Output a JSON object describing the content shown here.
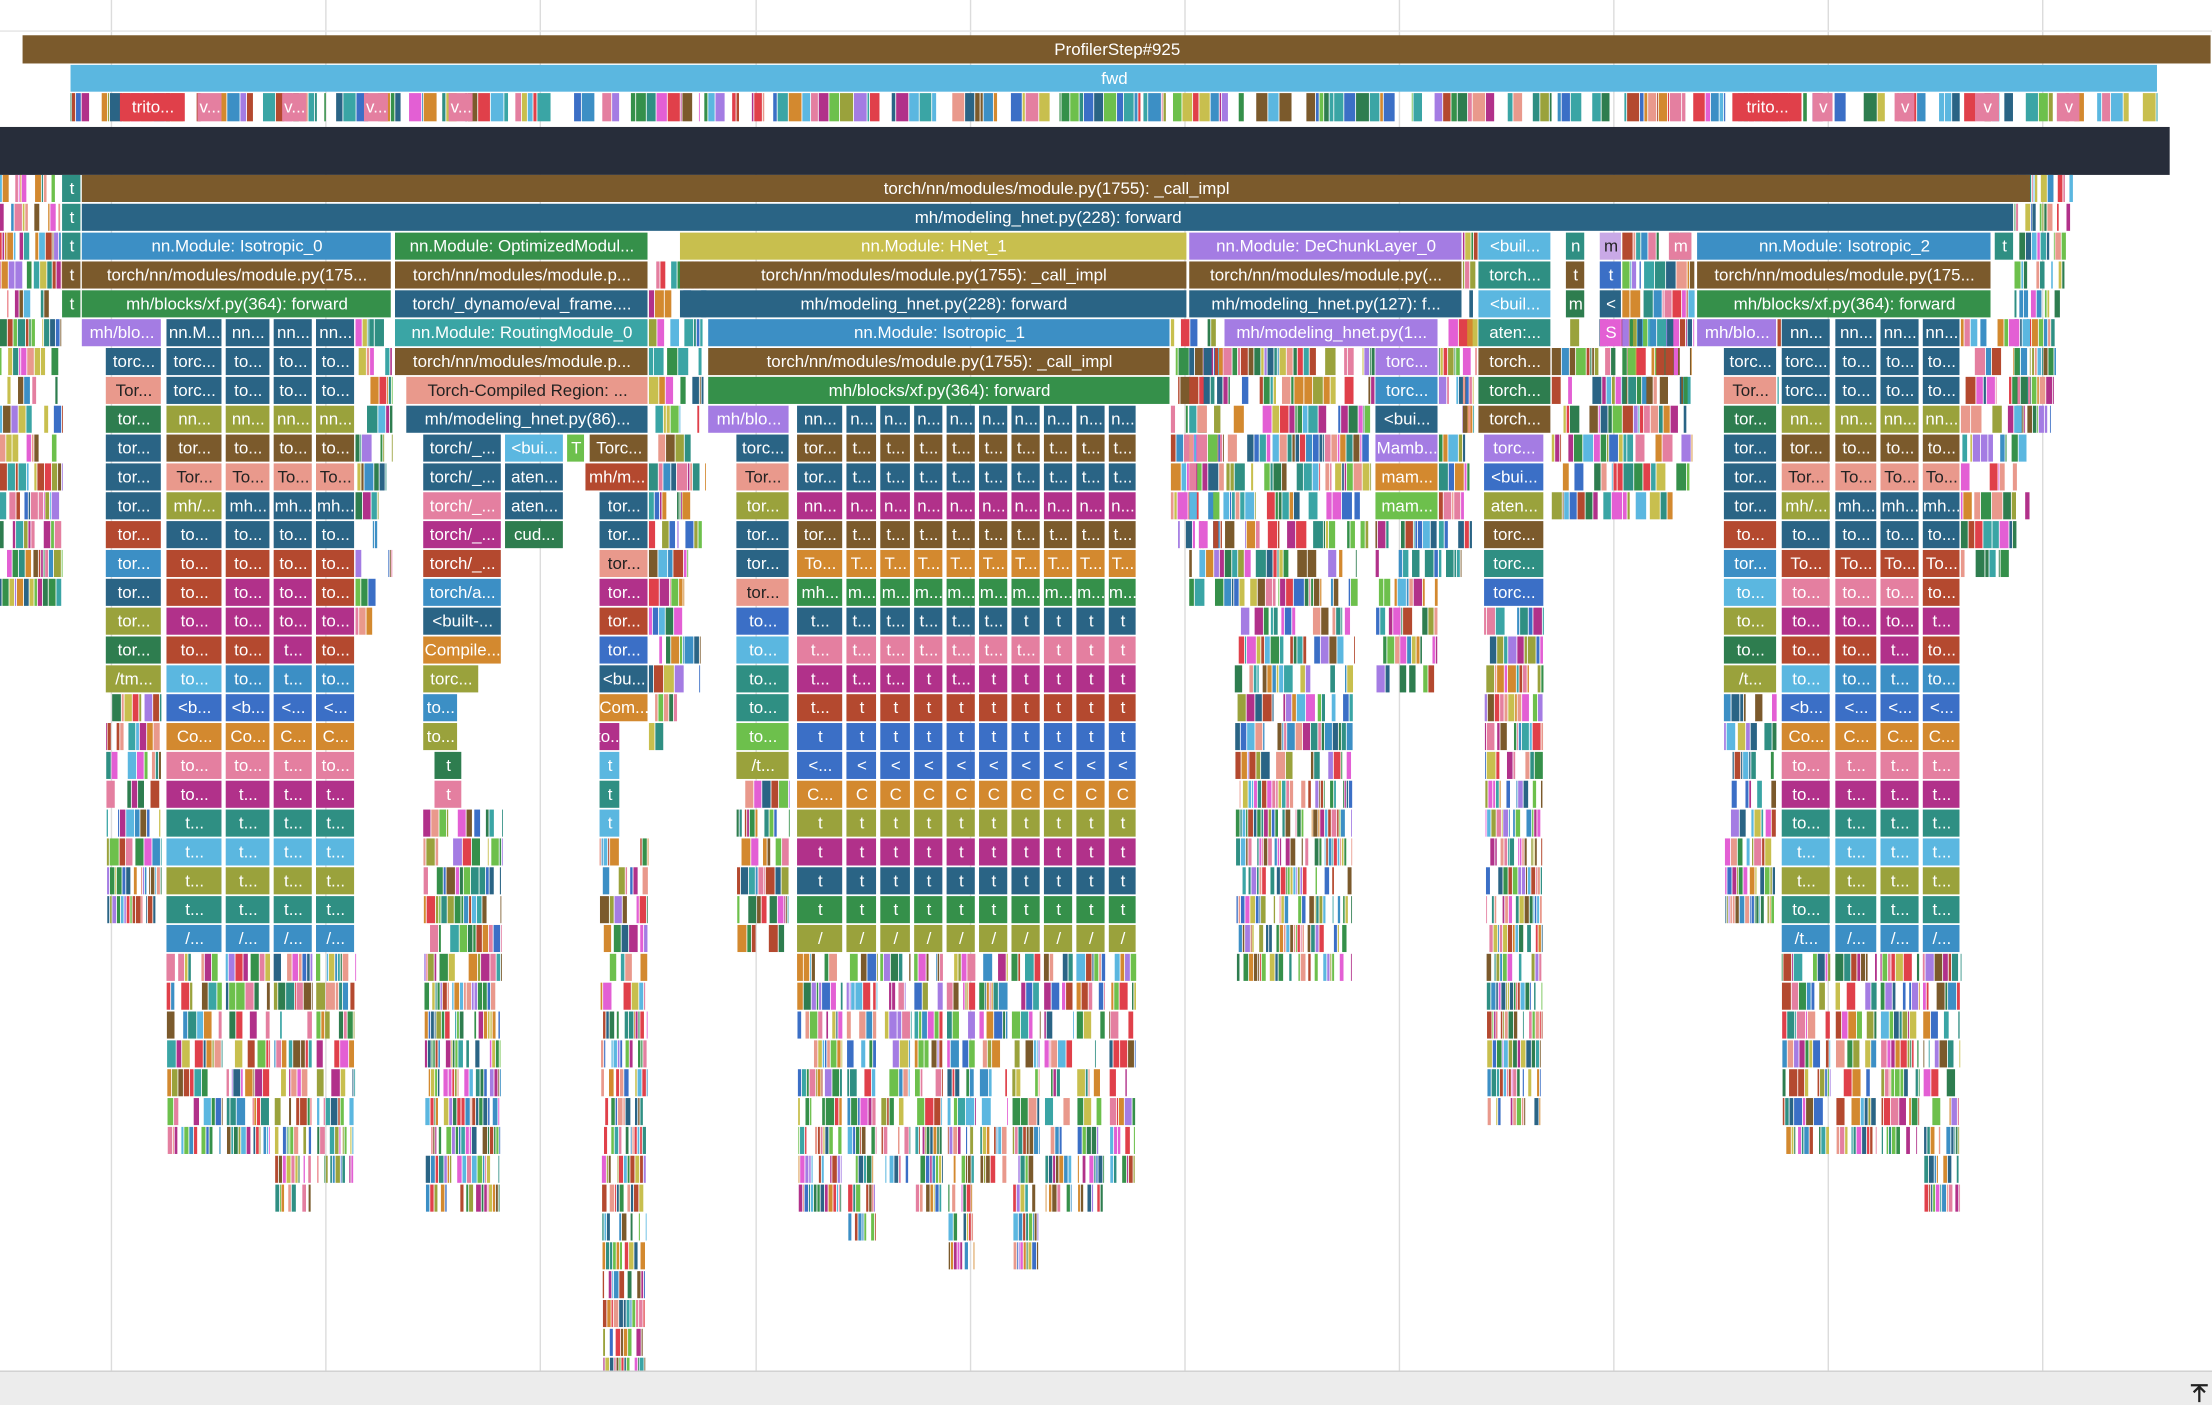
{
  "timeline": {
    "slices": [
      "ProfilerStep#925",
      "fwd"
    ],
    "track": [
      "trito...",
      "v...",
      "v...",
      "v...",
      "v...",
      "trito...",
      "v",
      "v",
      "v",
      "v"
    ]
  },
  "flame": {
    "rows": [
      [
        "t",
        "torch/nn/modules/module.py(1755): _call_impl"
      ],
      [
        "t",
        "mh/modeling_hnet.py(228): forward"
      ],
      [
        "t",
        "nn.Module: Isotropic_0",
        "nn.Module: OptimizedModul...",
        "nn.Module: HNet_1",
        "nn.Module: DeChunkLayer_0",
        "<buil...",
        "n",
        "m",
        "m",
        "nn.Module: Isotropic_2",
        "t"
      ],
      [
        "t",
        "torch/nn/modules/module.py(175...",
        "torch/nn/modules/module.p...",
        "torch/nn/modules/module.py(1755): _call_impl",
        "torch/nn/modules/module.py(...",
        "torch...",
        "t",
        "t",
        "torch/nn/modules/module.py(175..."
      ],
      [
        "t",
        "mh/blocks/xf.py(364): forward",
        "torch/_dynamo/eval_frame....",
        "mh/modeling_hnet.py(228): forward",
        "mh/modeling_hnet.py(127): f...",
        "<buil...",
        "m",
        "<",
        "mh/blocks/xf.py(364): forward"
      ],
      [
        "mh/blo...",
        "nn.M...",
        "nn...",
        "nn...",
        "nn...",
        "nn.Module: RoutingModule_0",
        "nn.Module: Isotropic_1",
        "mh/modeling_hnet.py(1...",
        "aten:...",
        "S",
        "mh/blo...",
        "nn...",
        "nn...",
        "nn...",
        "nn..."
      ],
      [
        "torc...",
        "torc...",
        "to...",
        "to...",
        "to...",
        "torch/nn/modules/module.p...",
        "torch/nn/modules/module.py(1755): _call_impl",
        "torc...",
        "torch...",
        "torc...",
        "torc...",
        "to...",
        "to...",
        "to..."
      ],
      [
        "Tor...",
        "torc...",
        "to...",
        "to...",
        "to...",
        "Torch-Compiled Region: ...",
        "mh/blocks/xf.py(364): forward",
        "torc...",
        "torch...",
        "Tor...",
        "torc...",
        "to...",
        "to...",
        "to..."
      ],
      [
        "tor...",
        "nn...",
        "nn...",
        "nn...",
        "nn...",
        "mh/modeling_hnet.py(86)...",
        "mh/blo...",
        "nn...",
        "n...",
        "n...",
        "n...",
        "n...",
        "n...",
        "n...",
        "n...",
        "n...",
        "n...",
        "<bui...",
        "torch...",
        "tor...",
        "nn...",
        "nn...",
        "nn...",
        "nn..."
      ],
      [
        "tor...",
        "tor...",
        "to...",
        "to...",
        "to...",
        "torch/_...",
        "<bui...",
        "T",
        "Torc...",
        "torc...",
        "tor...",
        "t...",
        "t...",
        "t...",
        "t...",
        "t...",
        "t...",
        "t...",
        "t...",
        "t...",
        "Mamb...",
        "torc...",
        "tor...",
        "tor...",
        "to...",
        "to...",
        "to..."
      ],
      [
        "tor...",
        "Tor...",
        "To...",
        "To...",
        "To...",
        "torch/_...",
        "aten...",
        "mh/m...",
        "Tor...",
        "tor...",
        "t...",
        "t...",
        "t...",
        "t...",
        "t...",
        "t...",
        "t...",
        "t...",
        "t...",
        "mam...",
        "<bui...",
        "tor...",
        "Tor...",
        "To...",
        "To...",
        "To..."
      ],
      [
        "tor...",
        "mh/...",
        "mh...",
        "mh...",
        "mh...",
        "torch/_...",
        "aten...",
        "tor...",
        "tor...",
        "nn...",
        "n...",
        "n...",
        "n...",
        "n...",
        "n...",
        "n...",
        "n...",
        "n...",
        "n...",
        "mam...",
        "aten...",
        "tor...",
        "mh/...",
        "mh...",
        "mh...",
        "mh..."
      ],
      [
        "tor...",
        "to...",
        "to...",
        "to...",
        "to...",
        "torch/_...",
        "cud...",
        "tor...",
        "tor...",
        "tor...",
        "t...",
        "t...",
        "t...",
        "t...",
        "t...",
        "t...",
        "t...",
        "t...",
        "t...",
        "torc...",
        "to...",
        "to...",
        "to...",
        "to...",
        "to..."
      ],
      [
        "tor...",
        "to...",
        "to...",
        "to...",
        "to...",
        "torch/_...",
        "tor...",
        "tor...",
        "To...",
        "T...",
        "T...",
        "T...",
        "T...",
        "T...",
        "T...",
        "T...",
        "T...",
        "T...",
        "torc...",
        "tor...",
        "To...",
        "To...",
        "To...",
        "To..."
      ],
      [
        "tor...",
        "to...",
        "to...",
        "to...",
        "to...",
        "torch/a...",
        "tor...",
        "tor...",
        "mh...",
        "m...",
        "m...",
        "m...",
        "m...",
        "m...",
        "m...",
        "m...",
        "m...",
        "m...",
        "torc...",
        "to...",
        "to...",
        "to...",
        "to...",
        "to..."
      ],
      [
        "tor...",
        "to...",
        "to...",
        "to...",
        "to...",
        "<built-...",
        "tor...",
        "to...",
        "t...",
        "t...",
        "t...",
        "t...",
        "t...",
        "t...",
        "t",
        "t",
        "t",
        "t",
        "to...",
        "to...",
        "to...",
        "to...",
        "t..."
      ],
      [
        "tor...",
        "to...",
        "to...",
        "t...",
        "to...",
        "Compile...",
        "tor...",
        "to...",
        "t...",
        "t...",
        "t...",
        "t...",
        "t...",
        "t...",
        "t...",
        "t",
        "t",
        "t",
        "to...",
        "to...",
        "to...",
        "t...",
        "to..."
      ],
      [
        "/tm...",
        "to...",
        "to...",
        "t...",
        "to...",
        "torc...",
        "<bu...",
        "to...",
        "t...",
        "t...",
        "t...",
        "t",
        "t...",
        "t",
        "t",
        "t",
        "t",
        "t",
        "/t...",
        "to...",
        "to...",
        "t...",
        "to..."
      ],
      [
        "<b...",
        "<b...",
        "<...",
        "<...",
        "to...",
        "Com...",
        "to...",
        "t...",
        "t",
        "t",
        "t",
        "t",
        "t",
        "t",
        "t",
        "t",
        "t",
        "<b...",
        "<...",
        "<...",
        "<..."
      ],
      [
        "Co...",
        "Co...",
        "C...",
        "C...",
        "to...",
        "to...",
        "to...",
        "t",
        "t",
        "t",
        "t",
        "t",
        "t",
        "t",
        "t",
        "t",
        "t",
        "Co...",
        "C...",
        "C...",
        "C..."
      ],
      [
        "to...",
        "to...",
        "t...",
        "to...",
        "t",
        "t",
        "/t...",
        "<...",
        "<",
        "<",
        "<",
        "<",
        "<",
        "<",
        "<",
        "<",
        "<",
        "to...",
        "t...",
        "t...",
        "t..."
      ],
      [
        "to...",
        "t...",
        "t...",
        "t...",
        "t",
        "t",
        "C...",
        "C",
        "C",
        "C",
        "C",
        "C",
        "C",
        "C",
        "C",
        "C",
        "to...",
        "t...",
        "t...",
        "t..."
      ],
      [
        "t...",
        "t...",
        "t...",
        "t...",
        "t",
        "t",
        "t",
        "t",
        "t",
        "t",
        "t",
        "t",
        "t",
        "t",
        "t",
        "to...",
        "t...",
        "t...",
        "t..."
      ],
      [
        "t...",
        "t...",
        "t...",
        "t...",
        "t",
        "t",
        "t",
        "t",
        "t",
        "t",
        "t",
        "t",
        "t",
        "t",
        "t...",
        "t...",
        "t...",
        "t..."
      ],
      [
        "t...",
        "t...",
        "t...",
        "t...",
        "t",
        "t",
        "t",
        "t",
        "t",
        "t",
        "t",
        "t",
        "t",
        "t",
        "t...",
        "t...",
        "t...",
        "t..."
      ],
      [
        "t...",
        "t...",
        "t...",
        "t...",
        "t",
        "t",
        "t",
        "t",
        "t",
        "t",
        "t",
        "t",
        "t",
        "t",
        "to...",
        "t...",
        "t...",
        "t..."
      ],
      [
        "/...",
        "/...",
        "/...",
        "/...",
        "/",
        "/",
        "/",
        "/",
        "/",
        "/",
        "/",
        "/",
        "/",
        "/",
        "/t...",
        "/...",
        "/...",
        "/..."
      ]
    ]
  }
}
